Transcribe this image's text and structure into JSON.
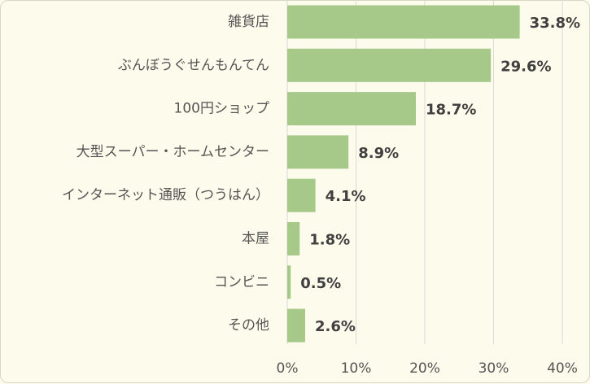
{
  "chart_data": {
    "type": "bar",
    "orientation": "horizontal",
    "categories": [
      "雑貨店",
      "ぶんぼうぐせんもんてん",
      "100円ショップ",
      "大型スーパー・ホームセンター",
      "インターネット通販（つうはん）",
      "本屋",
      "コンビニ",
      "その他"
    ],
    "values": [
      33.8,
      29.6,
      18.7,
      8.9,
      4.1,
      1.8,
      0.5,
      2.6
    ],
    "value_labels": [
      "33.8%",
      "29.6%",
      "18.7%",
      "8.9%",
      "4.1%",
      "1.8%",
      "0.5%",
      "2.6%"
    ],
    "x_ticks": [
      0,
      10,
      20,
      30,
      40
    ],
    "x_tick_labels": [
      "0%",
      "10%",
      "20%",
      "30%",
      "40%"
    ],
    "xlim": [
      0,
      40
    ],
    "grid": "vertical",
    "title": "",
    "xlabel": "",
    "ylabel": "",
    "bar_color": "#a6c98a",
    "background_color": "#fdfbec"
  }
}
